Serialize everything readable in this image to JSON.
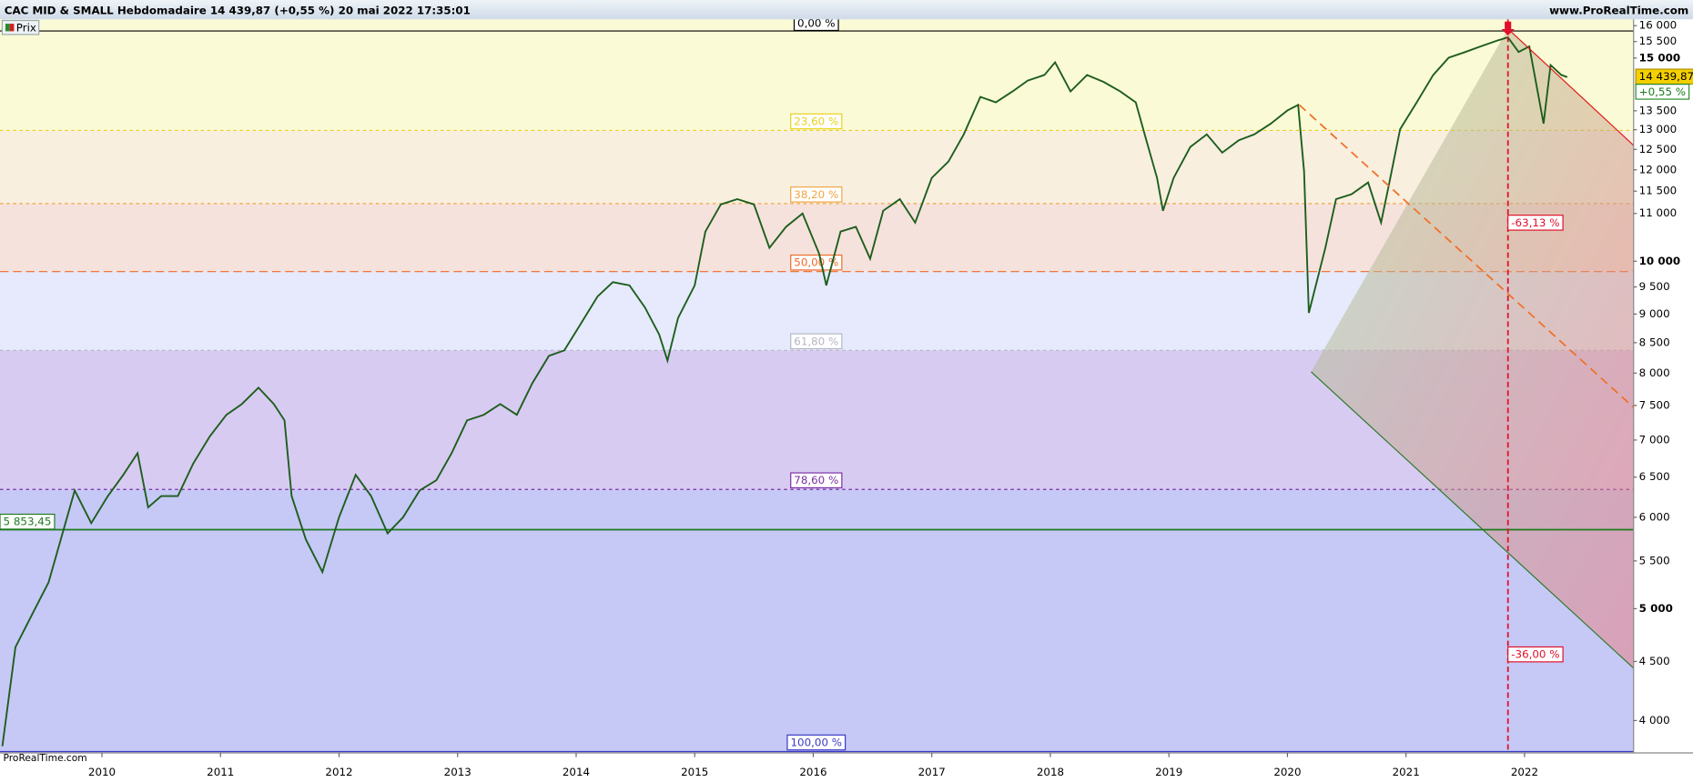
{
  "chart_data": {
    "type": "line",
    "title": "CAC MID & SMALL Hebdomadaire 14 439,87 (+0,55 %) 20 mai 2022 17:35:01",
    "watermark": "www.ProRealTime.com",
    "footer": "ProRealTime.com",
    "legend": "Prix",
    "color": "#1d5e1d",
    "log_scale": true,
    "xlim": [
      2009.14,
      2022.92
    ],
    "ylim": [
      3750,
      16200
    ],
    "xticks": [
      2010,
      2011,
      2012,
      2013,
      2014,
      2015,
      2016,
      2017,
      2018,
      2019,
      2020,
      2021,
      2022
    ],
    "yticks": [
      {
        "value": 4000,
        "label": "4 000"
      },
      {
        "value": 4500,
        "label": "4 500"
      },
      {
        "value": 5000,
        "label": "5 000"
      },
      {
        "value": 5500,
        "label": "5 500"
      },
      {
        "value": 6000,
        "label": "6 000"
      },
      {
        "value": 6500,
        "label": "6 500"
      },
      {
        "value": 7000,
        "label": "7 000"
      },
      {
        "value": 7500,
        "label": "7 500"
      },
      {
        "value": 8000,
        "label": "8 000"
      },
      {
        "value": 8500,
        "label": "8 500"
      },
      {
        "value": 9000,
        "label": "9 000"
      },
      {
        "value": 9500,
        "label": "9 500"
      },
      {
        "value": 10000,
        "label": "10 000"
      },
      {
        "value": 11000,
        "label": "11 000"
      },
      {
        "value": 11500,
        "label": "11 500"
      },
      {
        "value": 12000,
        "label": "12 000"
      },
      {
        "value": 12500,
        "label": "12 500"
      },
      {
        "value": 13000,
        "label": "13 000"
      },
      {
        "value": 13500,
        "label": "13 500"
      },
      {
        "value": 15000,
        "label": "15 000"
      },
      {
        "value": 15500,
        "label": "15 500"
      },
      {
        "value": 16000,
        "label": "16 000"
      }
    ],
    "x": [
      2009.16,
      2009.27,
      2009.41,
      2009.55,
      2009.64,
      2009.77,
      2009.91,
      2010.05,
      2010.18,
      2010.3,
      2010.39,
      2010.5,
      2010.64,
      2010.77,
      2010.91,
      2011.05,
      2011.18,
      2011.32,
      2011.45,
      2011.54,
      2011.6,
      2011.72,
      2011.86,
      2012.0,
      2012.14,
      2012.27,
      2012.41,
      2012.54,
      2012.68,
      2012.82,
      2012.95,
      2013.08,
      2013.22,
      2013.36,
      2013.5,
      2013.63,
      2013.77,
      2013.9,
      2014.04,
      2014.18,
      2014.31,
      2014.45,
      2014.58,
      2014.7,
      2014.77,
      2014.86,
      2015.0,
      2015.09,
      2015.22,
      2015.36,
      2015.5,
      2015.63,
      2015.77,
      2015.91,
      2016.05,
      2016.11,
      2016.23,
      2016.36,
      2016.48,
      2016.59,
      2016.73,
      2016.86,
      2017.0,
      2017.14,
      2017.27,
      2017.41,
      2017.54,
      2017.68,
      2017.81,
      2017.95,
      2018.04,
      2018.17,
      2018.31,
      2018.45,
      2018.59,
      2018.72,
      2018.81,
      2018.9,
      2018.95,
      2019.04,
      2019.18,
      2019.32,
      2019.45,
      2019.59,
      2019.72,
      2019.86,
      2020.0,
      2020.09,
      2020.14,
      2020.18,
      2020.25,
      2020.32,
      2020.41,
      2020.54,
      2020.68,
      2020.79,
      2020.86,
      2020.95,
      2021.09,
      2021.23,
      2021.36,
      2021.5,
      2021.63,
      2021.77,
      2021.86,
      2021.95,
      2022.04,
      2022.11,
      2022.16,
      2022.22,
      2022.31,
      2022.36
    ],
    "values": [
      3800,
      4630,
      4940,
      5270,
      5680,
      6330,
      5930,
      6260,
      6530,
      6820,
      6120,
      6260,
      6260,
      6680,
      7050,
      7360,
      7520,
      7770,
      7520,
      7280,
      6260,
      5740,
      5380,
      6000,
      6530,
      6260,
      5810,
      6000,
      6330,
      6460,
      6820,
      7280,
      7360,
      7520,
      7360,
      7840,
      8280,
      8370,
      8830,
      9320,
      9590,
      9530,
      9120,
      8640,
      8200,
      8930,
      9530,
      10610,
      11200,
      11320,
      11200,
      10270,
      10710,
      11000,
      10150,
      9530,
      10610,
      10710,
      10050,
      11060,
      11320,
      10800,
      11810,
      12200,
      12880,
      13880,
      13730,
      14030,
      14340,
      14500,
      14870,
      14030,
      14500,
      14300,
      14030,
      13730,
      12730,
      11810,
      11060,
      11810,
      12560,
      12880,
      12420,
      12730,
      12880,
      13160,
      13510,
      13660,
      11960,
      9020,
      9620,
      10270,
      11320,
      11430,
      11700,
      10800,
      11700,
      13010,
      13730,
      14500,
      15010,
      15180,
      15350,
      15530,
      15630,
      15180,
      15350,
      14030,
      13160,
      14790,
      14500,
      14439.87
    ],
    "last_price": {
      "value": 14439.87,
      "label": "14 439,87"
    },
    "change_label": "+0,55 %",
    "fib_levels": [
      {
        "value": 15830,
        "label": "0,00 %",
        "color": "#000000",
        "fill": "#fbfad6"
      },
      {
        "value": 12981,
        "label": "23,60 %",
        "color": "#e8d21a",
        "fill": "#f8efdf"
      },
      {
        "value": 11219,
        "label": "38,20 %",
        "color": "#f0a540",
        "fill": "#f6e2dc"
      },
      {
        "value": 9795,
        "label": "50,00 %",
        "color": "#f06a28",
        "fill": "#e6eafc"
      },
      {
        "value": 8371,
        "label": "61,80 %",
        "color": "#b4b6c4",
        "fill": "#d8cbf2"
      },
      {
        "value": 6343,
        "label": "78,60 %",
        "color": "#7a2ea6",
        "fill": "#c6c8f6"
      },
      {
        "value": 3760,
        "label": "100,00 %",
        "color": "#3a3ac4",
        "fill": "#c0c6f6"
      }
    ],
    "support": {
      "value": 5853.45,
      "label": "5 853,45",
      "color": "#1e7a1e"
    },
    "trend_lines": [
      {
        "color": "#e01818",
        "dashed": false,
        "x": [
          2021.86,
          2022.92
        ],
        "values": [
          15900,
          12600
        ]
      },
      {
        "color": "#f07028",
        "dashed": true,
        "x": [
          2020.1,
          2022.92
        ],
        "values": [
          13660,
          7470
        ]
      },
      {
        "color": "#2a7a2a",
        "dashed": false,
        "x": [
          2020.2,
          2022.92
        ],
        "values": [
          8020,
          4440
        ]
      }
    ],
    "event_line": {
      "x": 2021.86,
      "color": "#e0102a"
    },
    "annotations": [
      {
        "text": "-63,13 %",
        "x": 2021.86,
        "y": 10790
      },
      {
        "text": "-36,00 %",
        "x": 2021.86,
        "y": 4560
      }
    ]
  }
}
